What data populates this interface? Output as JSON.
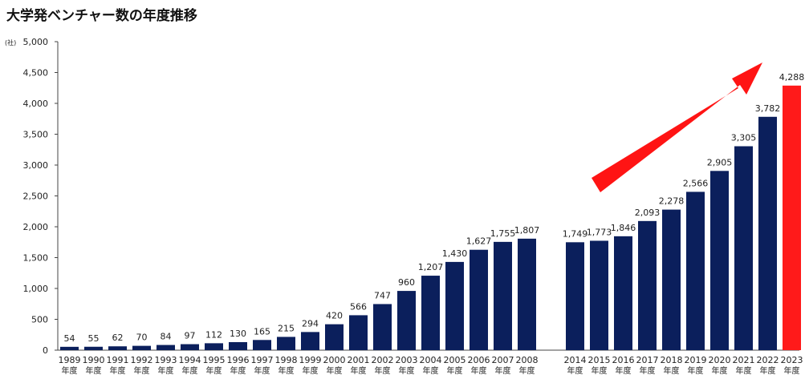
{
  "chart_data": {
    "type": "bar",
    "title": "大学発ベンチャー数の年度推移",
    "y_unit_label": "(社)",
    "ylim": [
      0,
      5000
    ],
    "yticks": [
      0,
      500,
      1000,
      1500,
      2000,
      2500,
      3000,
      3500,
      4000,
      4500,
      5000
    ],
    "ytick_labels": [
      "0",
      "500",
      "1,000",
      "1,500",
      "2,000",
      "2,500",
      "3,000",
      "3,500",
      "4,000",
      "4,500",
      "5,000"
    ],
    "grid": false,
    "category_suffix": "年度",
    "categories": [
      "1989",
      "1990",
      "1991",
      "1992",
      "1993",
      "1994",
      "1995",
      "1996",
      "1997",
      "1998",
      "1999",
      "2000",
      "2001",
      "2002",
      "2003",
      "2004",
      "2005",
      "2006",
      "2007",
      "2008",
      "2014",
      "2015",
      "2016",
      "2017",
      "2018",
      "2019",
      "2020",
      "2021",
      "2022",
      "2023"
    ],
    "values": [
      54,
      55,
      62,
      70,
      84,
      97,
      112,
      130,
      165,
      215,
      294,
      420,
      566,
      747,
      960,
      1207,
      1430,
      1627,
      1755,
      1807,
      1749,
      1773,
      1846,
      2093,
      2278,
      2566,
      2905,
      3305,
      3782,
      4288
    ],
    "value_labels": [
      "54",
      "55",
      "62",
      "70",
      "84",
      "97",
      "112",
      "130",
      "165",
      "215",
      "294",
      "420",
      "566",
      "747",
      "960",
      "1,207",
      "1,430",
      "1,627",
      "1,755",
      "1,807",
      "1,749",
      "1,773",
      "1,846",
      "2,093",
      "2,278",
      "2,566",
      "2,905",
      "3,305",
      "3,782",
      "4,288"
    ],
    "highlight_category": "2023",
    "colors": {
      "bar": "#0b1f5c",
      "highlight": "#ff1a1a",
      "highlight_label": "#ff3333",
      "arrow": "#ff1414",
      "axis": "#444444"
    },
    "annotations": [
      {
        "type": "arrow",
        "description": "upward trend arrow",
        "color": "#ff1414"
      }
    ]
  }
}
